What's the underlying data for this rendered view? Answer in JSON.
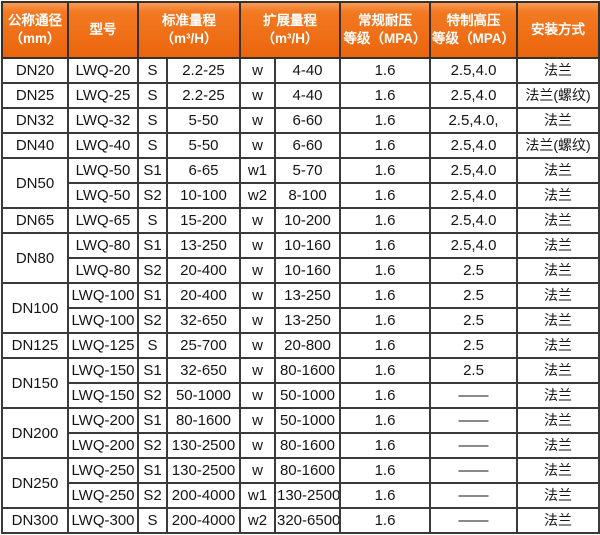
{
  "colors": {
    "header_orange": "#ee6c14",
    "header_orange_light": "#f89c58",
    "border_dark": "#2b2b2b",
    "body_text": "#151515",
    "header_text": "#ffffff"
  },
  "table": {
    "header": {
      "diameter": {
        "line1": "公称通径",
        "line2": "（mm）"
      },
      "model": {
        "line1": "型号",
        "line2": ""
      },
      "std_range": {
        "line1": "标准量程",
        "line2": "（m³/H）"
      },
      "ext_range": {
        "line1": "扩展量程",
        "line2": "（m³/H）"
      },
      "normal_pressure": {
        "line1": "常规耐压",
        "line2": "等级（MPA）"
      },
      "special_pressure": {
        "line1": "特制高压",
        "line2": "等级（MPA）"
      },
      "install": {
        "line1": "安装方式",
        "line2": ""
      }
    },
    "groups": [
      {
        "dn": "DN20",
        "rows": [
          {
            "model": "LWQ-20",
            "std_code": "S",
            "std_range": "2.2-25",
            "ext_code": "w",
            "ext_range": "4-40",
            "normal_mpa": "1.6",
            "special_mpa": "2.5,4.0",
            "install": "法兰"
          }
        ]
      },
      {
        "dn": "DN25",
        "rows": [
          {
            "model": "LWQ-25",
            "std_code": "S",
            "std_range": "2.2-25",
            "ext_code": "w",
            "ext_range": "4-40",
            "normal_mpa": "1.6",
            "special_mpa": "2.5,4.0",
            "install": "法兰(螺纹)"
          }
        ]
      },
      {
        "dn": "DN32",
        "rows": [
          {
            "model": "LWQ-32",
            "std_code": "S",
            "std_range": "5-50",
            "ext_code": "w",
            "ext_range": "6-60",
            "normal_mpa": "1.6",
            "special_mpa": "2.5,4.0,",
            "install": "法兰"
          }
        ]
      },
      {
        "dn": "DN40",
        "rows": [
          {
            "model": "LWQ-40",
            "std_code": "S",
            "std_range": "5-50",
            "ext_code": "w",
            "ext_range": "6-60",
            "normal_mpa": "1.6",
            "special_mpa": "2.5,4.0",
            "install": "法兰(螺纹)"
          }
        ]
      },
      {
        "dn": "DN50",
        "rows": [
          {
            "model": "LWQ-50",
            "std_code": "S1",
            "std_range": "6-65",
            "ext_code": "w1",
            "ext_range": "5-70",
            "normal_mpa": "1.6",
            "special_mpa": "2.5,4.0",
            "install": "法兰"
          },
          {
            "model": "LWQ-50",
            "std_code": "S2",
            "std_range": "10-100",
            "ext_code": "w2",
            "ext_range": "8-100",
            "normal_mpa": "1.6",
            "special_mpa": "2.5,4.0",
            "install": "法兰"
          }
        ]
      },
      {
        "dn": "DN65",
        "rows": [
          {
            "model": "LWQ-65",
            "std_code": "S",
            "std_range": "15-200",
            "ext_code": "w",
            "ext_range": "10-200",
            "normal_mpa": "1.6",
            "special_mpa": "2.5,4.0",
            "install": "法兰"
          }
        ]
      },
      {
        "dn": "DN80",
        "rows": [
          {
            "model": "LWQ-80",
            "std_code": "S1",
            "std_range": "13-250",
            "ext_code": "w",
            "ext_range": "10-160",
            "normal_mpa": "1.6",
            "special_mpa": "2.5,4.0",
            "install": "法兰"
          },
          {
            "model": "LWQ-80",
            "std_code": "S2",
            "std_range": "20-400",
            "ext_code": "w",
            "ext_range": "10-160",
            "normal_mpa": "1.6",
            "special_mpa": "2.5",
            "install": "法兰"
          }
        ]
      },
      {
        "dn": "DN100",
        "rows": [
          {
            "model": "LWQ-100",
            "std_code": "S1",
            "std_range": "20-400",
            "ext_code": "w",
            "ext_range": "13-250",
            "normal_mpa": "1.6",
            "special_mpa": "2.5",
            "install": "法兰"
          },
          {
            "model": "LWQ-100",
            "std_code": "S2",
            "std_range": "32-650",
            "ext_code": "w",
            "ext_range": "13-250",
            "normal_mpa": "1.6",
            "special_mpa": "2.5",
            "install": "法兰"
          }
        ]
      },
      {
        "dn": "DN125",
        "rows": [
          {
            "model": "LWQ-125",
            "std_code": "S",
            "std_range": "25-700",
            "ext_code": "w",
            "ext_range": "20-800",
            "normal_mpa": "1.6",
            "special_mpa": "2.5",
            "install": "法兰"
          }
        ]
      },
      {
        "dn": "DN150",
        "rows": [
          {
            "model": "LWQ-150",
            "std_code": "S1",
            "std_range": "32-650",
            "ext_code": "w",
            "ext_range": "80-1600",
            "normal_mpa": "1.6",
            "special_mpa": "2.5",
            "install": "法兰"
          },
          {
            "model": "LWQ-150",
            "std_code": "S2",
            "std_range": "50-1000",
            "ext_code": "w",
            "ext_range": "50-1000",
            "normal_mpa": "1.6",
            "special_mpa": "——",
            "install": "法兰"
          }
        ]
      },
      {
        "dn": "DN200",
        "rows": [
          {
            "model": "LWQ-200",
            "std_code": "S1",
            "std_range": "80-1600",
            "ext_code": "w",
            "ext_range": "50-1000",
            "normal_mpa": "1.6",
            "special_mpa": "——",
            "install": "法兰"
          },
          {
            "model": "LWQ-200",
            "std_code": "S2",
            "std_range": "130-2500",
            "ext_code": "w",
            "ext_range": "80-1600",
            "normal_mpa": "1.6",
            "special_mpa": "——",
            "install": "法兰"
          }
        ]
      },
      {
        "dn": "DN250",
        "rows": [
          {
            "model": "LWQ-250",
            "std_code": "S1",
            "std_range": "130-2500",
            "ext_code": "w",
            "ext_range": "80-1600",
            "normal_mpa": "1.6",
            "special_mpa": "——",
            "install": "法兰"
          },
          {
            "model": "LWQ-250",
            "std_code": "S2",
            "std_range": "200-4000",
            "ext_code": "w1",
            "ext_range": "130-2500",
            "normal_mpa": "1.6",
            "special_mpa": "——",
            "install": "法兰"
          }
        ]
      },
      {
        "dn": "DN300",
        "rows": [
          {
            "model": "LWQ-300",
            "std_code": "S",
            "std_range": "200-4000",
            "ext_code": "w2",
            "ext_range": "320-6500",
            "normal_mpa": "1.6",
            "special_mpa": "——",
            "install": "法兰"
          }
        ]
      }
    ]
  }
}
